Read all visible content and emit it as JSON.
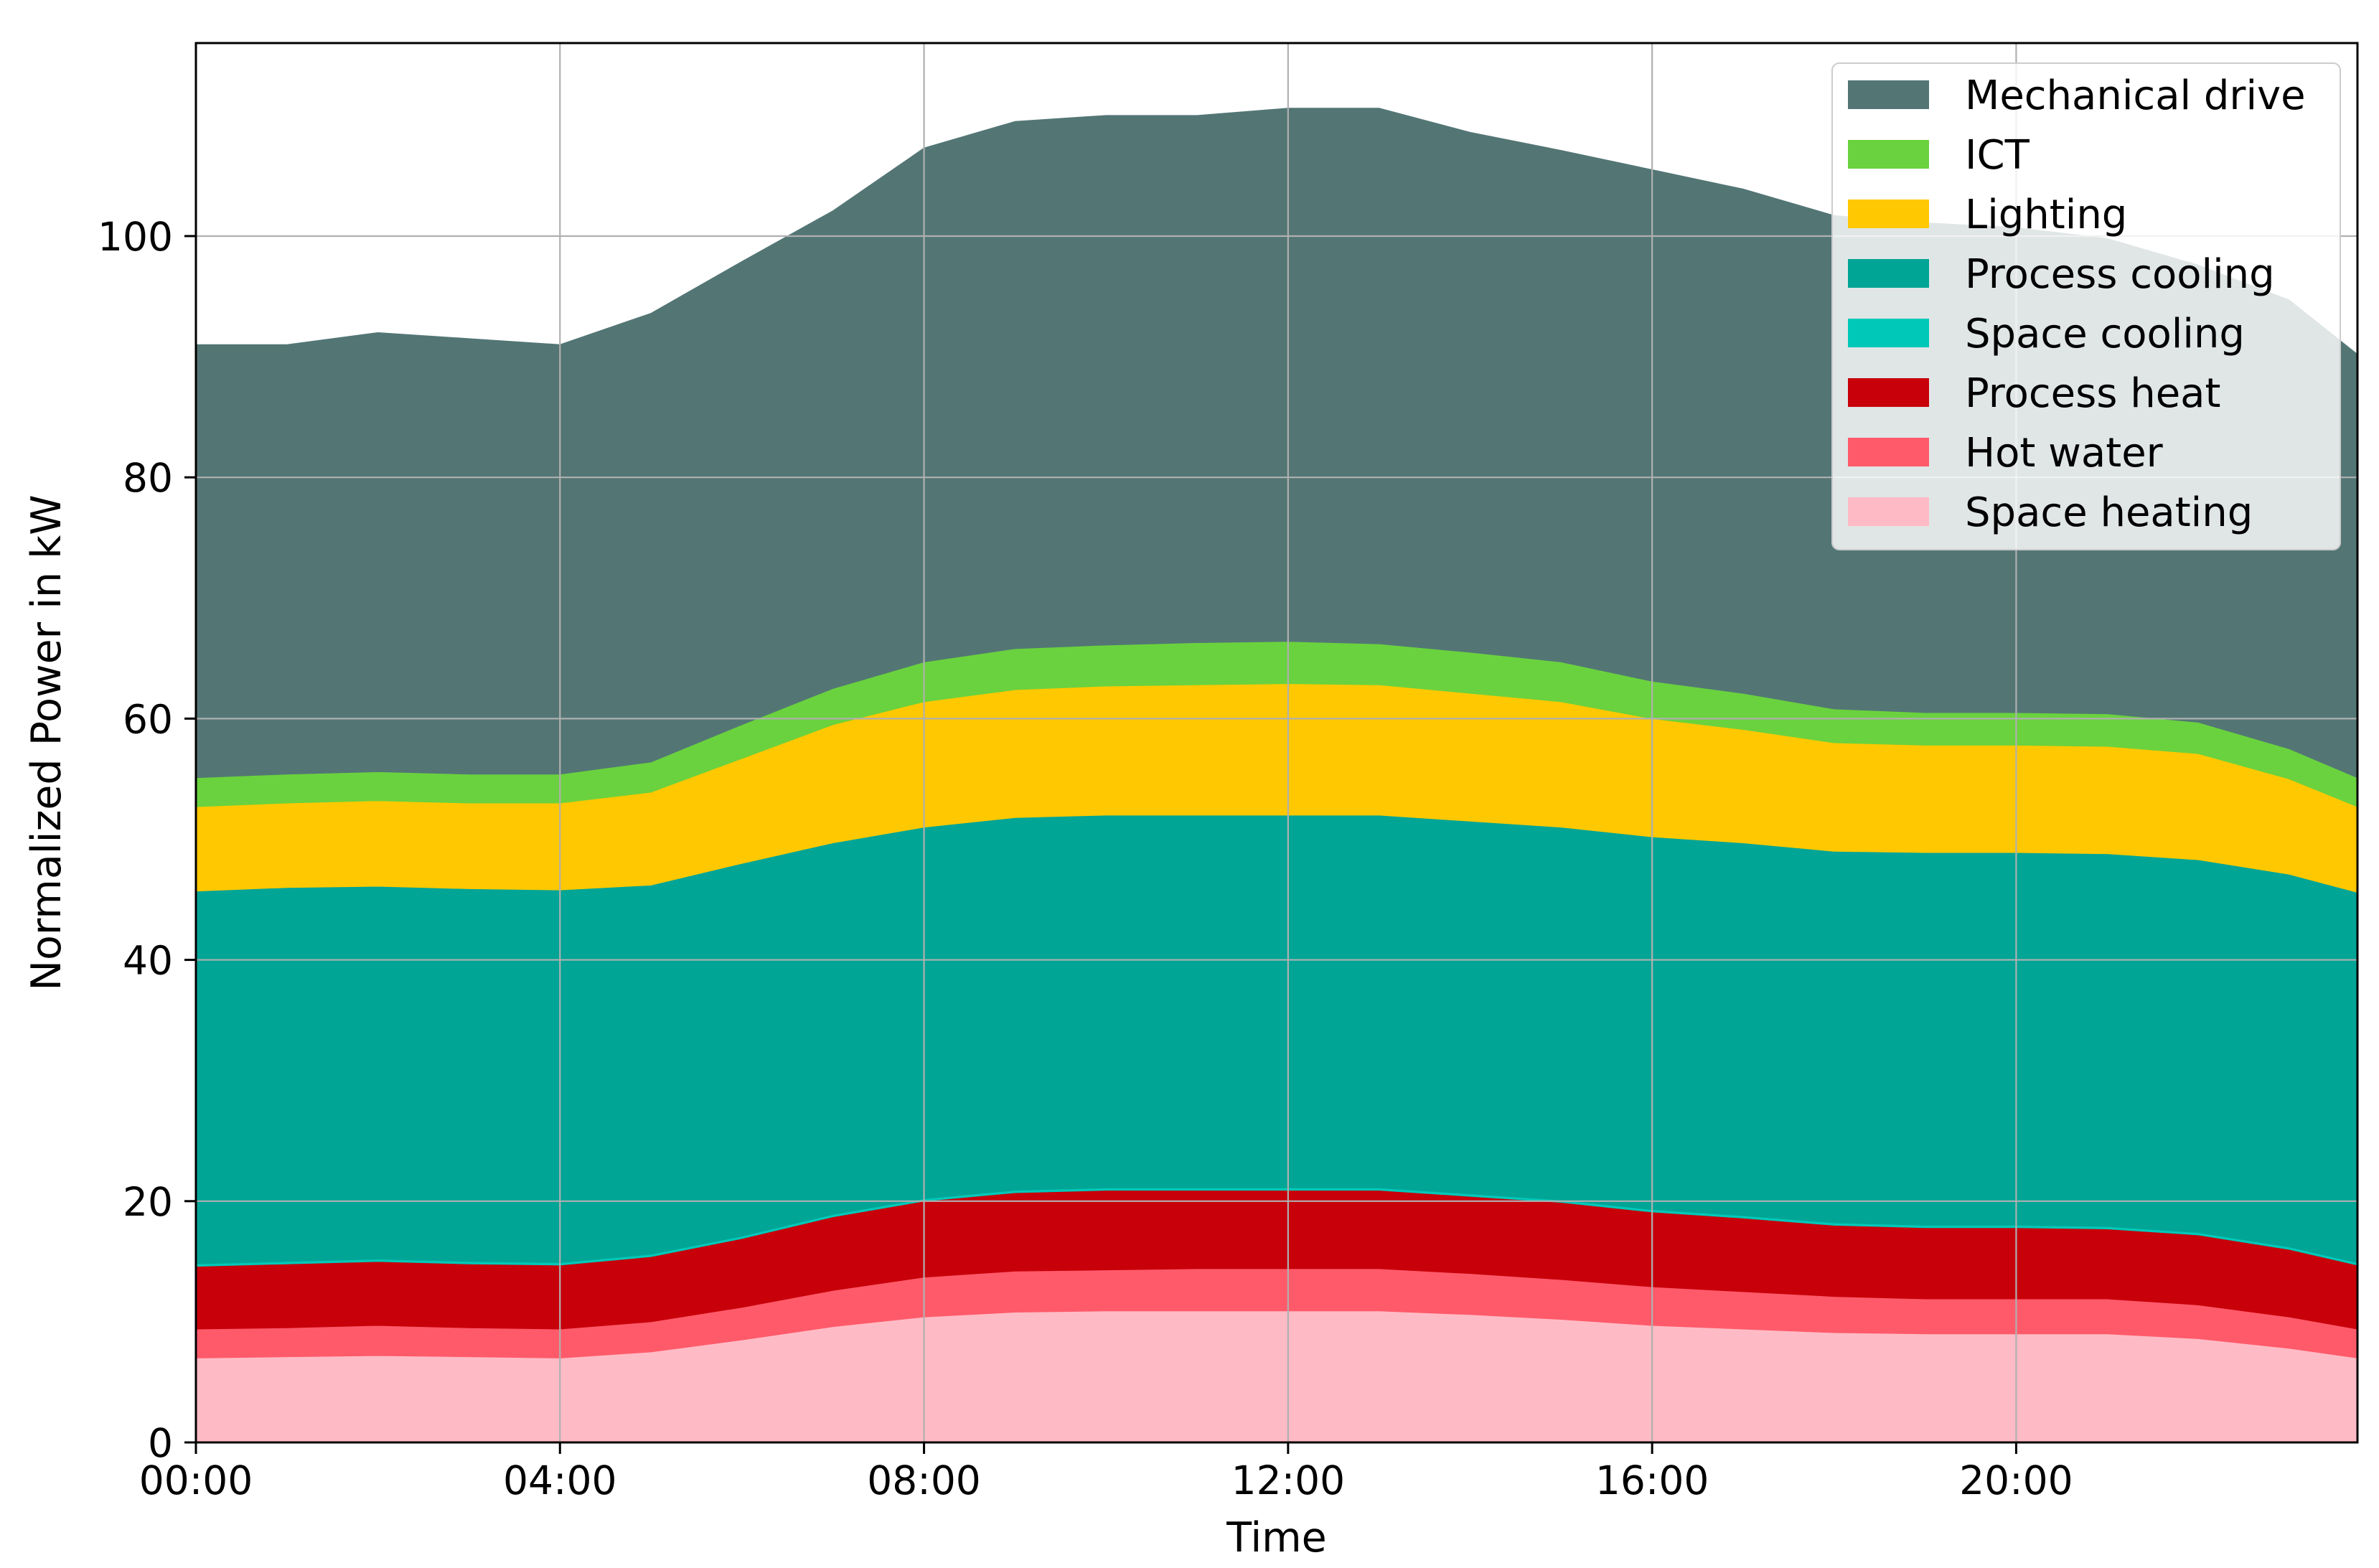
{
  "chart_data": {
    "type": "area",
    "stacked": true,
    "title": "",
    "xlabel": "Time",
    "ylabel": "Normalized Power in kW",
    "xlim": [
      0,
      23.75
    ],
    "ylim": [
      0,
      116
    ],
    "x_tick_values": [
      0,
      4,
      8,
      12,
      16,
      20
    ],
    "x_tick_labels": [
      "00:00",
      "04:00",
      "08:00",
      "12:00",
      "16:00",
      "20:00"
    ],
    "y_ticks": [
      0,
      20,
      40,
      60,
      80,
      100
    ],
    "grid": true,
    "legend_position": "top-right",
    "x": [
      0,
      1,
      2,
      3,
      4,
      5,
      6,
      7,
      8,
      9,
      10,
      11,
      12,
      13,
      14,
      15,
      16,
      17,
      18,
      19,
      20,
      21,
      22,
      23,
      23.75
    ],
    "series": [
      {
        "name": "Space heating",
        "color": "#ffbbc5",
        "values": [
          7.0,
          7.1,
          7.2,
          7.1,
          7.0,
          7.5,
          8.5,
          9.6,
          10.4,
          10.8,
          10.9,
          10.9,
          10.9,
          10.9,
          10.6,
          10.2,
          9.7,
          9.4,
          9.1,
          9.0,
          9.0,
          9.0,
          8.6,
          7.8,
          7.0
        ]
      },
      {
        "name": "Hot water",
        "color": "#ff5a6a",
        "values": [
          2.4,
          2.4,
          2.5,
          2.4,
          2.4,
          2.5,
          2.7,
          3.0,
          3.3,
          3.4,
          3.4,
          3.5,
          3.5,
          3.5,
          3.4,
          3.3,
          3.2,
          3.1,
          3.0,
          2.9,
          2.9,
          2.9,
          2.8,
          2.6,
          2.4
        ]
      },
      {
        "name": "Process heat",
        "color": "#c8000a",
        "values": [
          5.2,
          5.3,
          5.3,
          5.3,
          5.3,
          5.4,
          5.7,
          6.1,
          6.3,
          6.5,
          6.6,
          6.5,
          6.5,
          6.5,
          6.4,
          6.4,
          6.2,
          6.1,
          5.9,
          5.9,
          5.9,
          5.8,
          5.8,
          5.6,
          5.3
        ]
      },
      {
        "name": "Space cooling",
        "color": "#00c8b8",
        "values": [
          0.2,
          0.2,
          0.2,
          0.2,
          0.2,
          0.2,
          0.2,
          0.2,
          0.2,
          0.2,
          0.2,
          0.2,
          0.2,
          0.2,
          0.2,
          0.2,
          0.2,
          0.2,
          0.2,
          0.2,
          0.2,
          0.2,
          0.2,
          0.2,
          0.2
        ]
      },
      {
        "name": "Process cooling",
        "color": "#00a596",
        "values": [
          30.9,
          31.0,
          30.9,
          30.9,
          30.9,
          30.6,
          30.9,
          30.8,
          30.8,
          30.9,
          30.9,
          30.9,
          30.9,
          30.9,
          30.9,
          30.9,
          30.9,
          30.9,
          30.8,
          30.9,
          30.9,
          30.9,
          30.9,
          30.9,
          30.7
        ]
      },
      {
        "name": "Lighting",
        "color": "#ffc800",
        "values": [
          7.0,
          7.0,
          7.1,
          7.1,
          7.2,
          7.7,
          8.7,
          9.8,
          10.4,
          10.6,
          10.7,
          10.8,
          10.9,
          10.8,
          10.6,
          10.4,
          9.8,
          9.4,
          9.0,
          8.9,
          8.9,
          8.9,
          8.8,
          7.9,
          7.1
        ]
      },
      {
        "name": "ICT",
        "color": "#6ad23e",
        "values": [
          2.4,
          2.4,
          2.4,
          2.4,
          2.4,
          2.5,
          2.8,
          3.0,
          3.3,
          3.4,
          3.4,
          3.5,
          3.5,
          3.4,
          3.4,
          3.3,
          3.1,
          3.0,
          2.8,
          2.7,
          2.7,
          2.7,
          2.6,
          2.5,
          2.4
        ]
      },
      {
        "name": "Mechanical drive",
        "color": "#537675",
        "values": [
          35.9,
          35.6,
          36.4,
          36.1,
          35.6,
          37.2,
          38.4,
          39.6,
          42.6,
          43.7,
          43.9,
          43.7,
          44.2,
          44.4,
          43.1,
          42.4,
          42.4,
          41.8,
          40.9,
          40.6,
          40.2,
          39.4,
          37.9,
          37.2,
          35.1
        ]
      }
    ],
    "legend_order": [
      "Mechanical drive",
      "ICT",
      "Lighting",
      "Process cooling",
      "Space cooling",
      "Process heat",
      "Hot water",
      "Space heating"
    ]
  }
}
